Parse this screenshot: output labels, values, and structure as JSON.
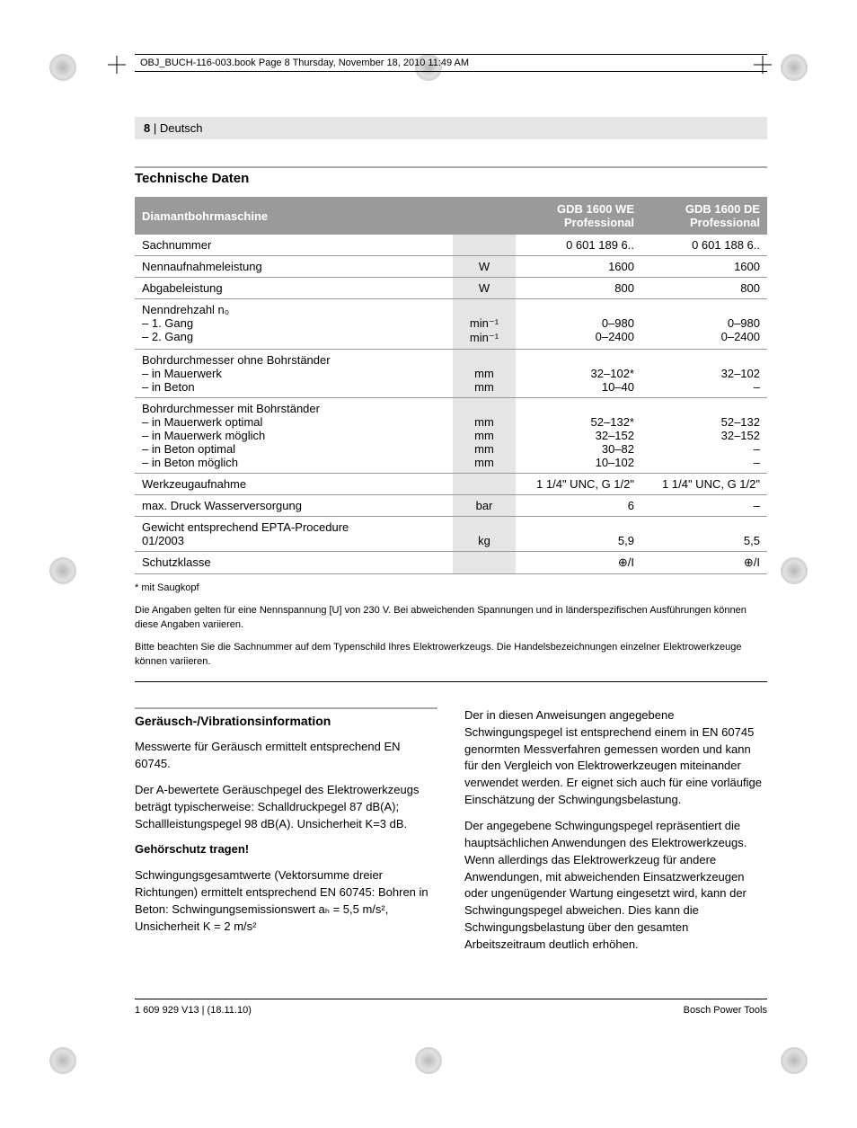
{
  "book_header": "OBJ_BUCH-116-003.book  Page 8  Thursday, November 18, 2010  11:49 AM",
  "page_header": {
    "num": "8",
    "sep": " | ",
    "lang": "Deutsch"
  },
  "section1_title": "Technische Daten",
  "table": {
    "head": {
      "c1": "Diamantbohrmaschine",
      "c2": "GDB 1600 WE Professional",
      "c3": "GDB 1600 DE Professional"
    },
    "rows": [
      {
        "label": "Sachnummer",
        "unit": "",
        "v1": "0 601 189 6..",
        "v2": "0 601 188 6.."
      },
      {
        "label": "Nennaufnahmeleistung",
        "unit": "W",
        "v1": "1600",
        "v2": "1600"
      },
      {
        "label": "Abgabeleistung",
        "unit": "W",
        "v1": "800",
        "v2": "800"
      },
      {
        "label_lines": [
          "Nenndrehzahl n₀",
          "– 1. Gang",
          "– 2. Gang"
        ],
        "unit_lines": [
          "",
          "min⁻¹",
          "min⁻¹"
        ],
        "v1_lines": [
          "",
          "0–980",
          "0–2400"
        ],
        "v2_lines": [
          "",
          "0–980",
          "0–2400"
        ]
      },
      {
        "label_lines": [
          "Bohrdurchmesser ohne Bohrständer",
          "– in Mauerwerk",
          "– in Beton"
        ],
        "unit_lines": [
          "",
          "mm",
          "mm"
        ],
        "v1_lines": [
          "",
          "32–102*",
          "10–40"
        ],
        "v2_lines": [
          "",
          "32–102",
          "–"
        ]
      },
      {
        "label_lines": [
          "Bohrdurchmesser mit Bohrständer",
          "– in Mauerwerk optimal",
          "– in Mauerwerk möglich",
          "– in Beton optimal",
          "– in Beton möglich"
        ],
        "unit_lines": [
          "",
          "mm",
          "mm",
          "mm",
          "mm"
        ],
        "v1_lines": [
          "",
          "52–132*",
          "32–152",
          "30–82",
          "10–102"
        ],
        "v2_lines": [
          "",
          "52–132",
          "32–152",
          "–",
          "–"
        ]
      },
      {
        "label": "Werkzeugaufnahme",
        "unit": "",
        "v1": "1 1/4\" UNC, G 1/2\"",
        "v2": "1 1/4\" UNC, G 1/2\""
      },
      {
        "label": "max. Druck Wasserversorgung",
        "unit": "bar",
        "v1": "6",
        "v2": "–"
      },
      {
        "label_lines": [
          "Gewicht entsprechend EPTA-Procedure",
          "01/2003"
        ],
        "unit_lines": [
          "",
          "kg"
        ],
        "v1_lines": [
          "",
          "5,9"
        ],
        "v2_lines": [
          "",
          "5,5"
        ]
      },
      {
        "label": "Schutzklasse",
        "unit": "",
        "v1": "⊕/I",
        "v2": "⊕/I"
      }
    ]
  },
  "footnotes": [
    "* mit Saugkopf",
    "Die Angaben gelten für eine Nennspannung [U] von 230 V. Bei abweichenden Spannungen und in länderspezifischen Ausführungen können diese Angaben variieren.",
    "Bitte beachten Sie die Sachnummer auf dem Typenschild Ihres Elektrowerkzeugs. Die Handelsbezeichnungen einzelner Elektrowerkzeuge können variieren."
  ],
  "section2_title": "Geräusch-/Vibrationsinformation",
  "col1": {
    "p1": "Messwerte für Geräusch ermittelt entsprechend EN 60745.",
    "p2": "Der A-bewertete Geräuschpegel des Elektrowerkzeugs beträgt typischerweise: Schalldruckpegel 87 dB(A); Schallleistungspegel 98 dB(A). Unsicherheit K=3 dB.",
    "p3_bold": "Gehörschutz tragen!",
    "p4": "Schwingungsgesamtwerte (Vektorsumme dreier Richtungen) ermittelt entsprechend EN 60745: Bohren in Beton: Schwingungsemissionswert aₕ = 5,5 m/s², Unsicherheit K = 2 m/s²"
  },
  "col2": {
    "p1": "Der in diesen Anweisungen angegebene Schwingungspegel ist entsprechend einem in EN 60745 genormten Messverfahren gemessen worden und kann für den Vergleich von Elektrowerkzeugen miteinander verwendet werden. Er eignet sich auch für eine vorläufige Einschätzung der Schwingungsbelastung.",
    "p2": "Der angegebene Schwingungspegel repräsentiert die hauptsächlichen Anwendungen des Elektrowerkzeugs. Wenn allerdings das Elektrowerkzeug für andere Anwendungen, mit abweichenden Einsatzwerkzeugen oder ungenügender Wartung eingesetzt wird, kann der Schwingungspegel abweichen. Dies kann die Schwingungsbelastung über den gesamten Arbeitszeitraum deutlich erhöhen."
  },
  "footer": {
    "left": "1 609 929 V13 | (18.11.10)",
    "right": "Bosch Power Tools"
  }
}
